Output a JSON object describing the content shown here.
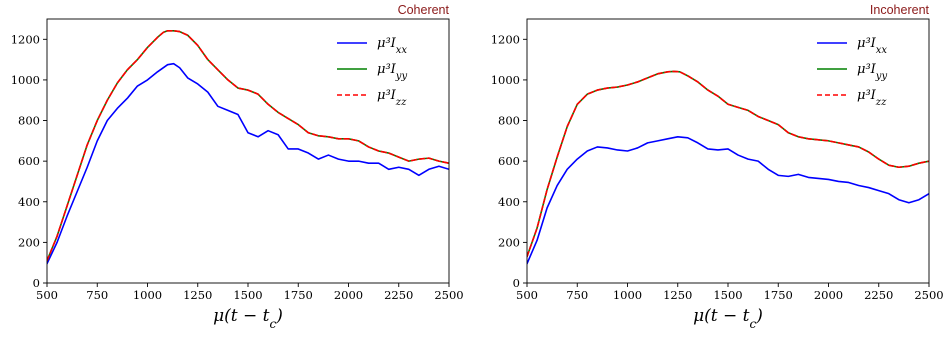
{
  "chart_data": [
    {
      "type": "line",
      "title": "Coherent",
      "xlabel": "μ(t − t_c)",
      "ylabel": "",
      "xlim": [
        500,
        2500
      ],
      "ylim": [
        0,
        1300
      ],
      "xticks": [
        "500",
        "750",
        "1000",
        "1250",
        "1500",
        "1750",
        "2000",
        "2250",
        "2500"
      ],
      "yticks": [
        "0",
        "200",
        "400",
        "600",
        "800",
        "1000",
        "1200"
      ],
      "legend_position": "top-right",
      "series": [
        {
          "name": "μ³I_xx",
          "color": "#0000ff",
          "dash": "solid",
          "x": [
            500,
            550,
            600,
            650,
            700,
            750,
            800,
            850,
            900,
            950,
            1000,
            1050,
            1100,
            1130,
            1160,
            1200,
            1250,
            1300,
            1350,
            1400,
            1450,
            1500,
            1550,
            1600,
            1650,
            1700,
            1750,
            1800,
            1850,
            1900,
            1950,
            2000,
            2050,
            2100,
            2150,
            2200,
            2250,
            2300,
            2350,
            2400,
            2450,
            2500
          ],
          "y": [
            95,
            200,
            330,
            450,
            570,
            700,
            800,
            860,
            910,
            970,
            1000,
            1040,
            1075,
            1080,
            1060,
            1010,
            980,
            940,
            870,
            850,
            830,
            740,
            720,
            750,
            730,
            660,
            660,
            640,
            610,
            630,
            610,
            600,
            600,
            590,
            590,
            560,
            570,
            560,
            530,
            560,
            575,
            560
          ]
        },
        {
          "name": "μ³I_yy",
          "color": "#008000",
          "dash": "solid",
          "x": [
            500,
            550,
            600,
            650,
            700,
            750,
            800,
            850,
            900,
            950,
            1000,
            1050,
            1080,
            1100,
            1130,
            1160,
            1200,
            1250,
            1300,
            1350,
            1400,
            1450,
            1500,
            1550,
            1600,
            1650,
            1700,
            1750,
            1800,
            1850,
            1900,
            1950,
            2000,
            2050,
            2100,
            2150,
            2200,
            2250,
            2300,
            2350,
            2400,
            2450,
            2500
          ],
          "y": [
            110,
            230,
            380,
            530,
            680,
            800,
            900,
            985,
            1050,
            1100,
            1160,
            1210,
            1235,
            1242,
            1242,
            1238,
            1220,
            1170,
            1100,
            1050,
            1000,
            960,
            950,
            930,
            880,
            840,
            810,
            780,
            740,
            725,
            720,
            710,
            710,
            700,
            670,
            650,
            640,
            620,
            600,
            610,
            615,
            600,
            590
          ]
        },
        {
          "name": "μ³I_zz",
          "color": "#ff0000",
          "dash": "dashed",
          "x": [
            500,
            550,
            600,
            650,
            700,
            750,
            800,
            850,
            900,
            950,
            1000,
            1050,
            1080,
            1100,
            1130,
            1160,
            1200,
            1250,
            1300,
            1350,
            1400,
            1450,
            1500,
            1550,
            1600,
            1650,
            1700,
            1750,
            1800,
            1850,
            1900,
            1950,
            2000,
            2050,
            2100,
            2150,
            2200,
            2250,
            2300,
            2350,
            2400,
            2450,
            2500
          ],
          "y": [
            110,
            230,
            380,
            530,
            680,
            800,
            900,
            985,
            1050,
            1100,
            1160,
            1210,
            1235,
            1242,
            1242,
            1238,
            1220,
            1170,
            1100,
            1050,
            1000,
            960,
            950,
            930,
            880,
            840,
            810,
            780,
            740,
            725,
            720,
            710,
            710,
            700,
            670,
            650,
            640,
            620,
            600,
            610,
            615,
            600,
            590
          ]
        }
      ]
    },
    {
      "type": "line",
      "title": "Incoherent",
      "xlabel": "μ(t − t_c)",
      "ylabel": "",
      "xlim": [
        500,
        2500
      ],
      "ylim": [
        0,
        1300
      ],
      "xticks": [
        "500",
        "750",
        "1000",
        "1250",
        "1500",
        "1750",
        "2000",
        "2250",
        "2500"
      ],
      "yticks": [
        "0",
        "200",
        "400",
        "600",
        "800",
        "1000",
        "1200"
      ],
      "legend_position": "top-right",
      "series": [
        {
          "name": "μ³I_xx",
          "color": "#0000ff",
          "dash": "solid",
          "x": [
            500,
            550,
            600,
            650,
            700,
            750,
            800,
            850,
            900,
            950,
            1000,
            1050,
            1100,
            1150,
            1200,
            1250,
            1300,
            1350,
            1400,
            1450,
            1500,
            1550,
            1600,
            1650,
            1700,
            1750,
            1800,
            1850,
            1900,
            1950,
            2000,
            2050,
            2100,
            2150,
            2200,
            2250,
            2300,
            2350,
            2400,
            2450,
            2500
          ],
          "y": [
            95,
            210,
            370,
            480,
            560,
            610,
            650,
            670,
            665,
            655,
            650,
            665,
            690,
            700,
            710,
            720,
            715,
            690,
            660,
            655,
            660,
            630,
            610,
            600,
            560,
            530,
            525,
            535,
            520,
            515,
            510,
            500,
            495,
            480,
            470,
            455,
            440,
            410,
            395,
            410,
            440
          ]
        },
        {
          "name": "μ³I_yy",
          "color": "#008000",
          "dash": "solid",
          "x": [
            500,
            550,
            600,
            650,
            700,
            750,
            800,
            850,
            900,
            950,
            1000,
            1050,
            1100,
            1150,
            1200,
            1230,
            1260,
            1300,
            1350,
            1400,
            1450,
            1500,
            1550,
            1600,
            1650,
            1700,
            1750,
            1800,
            1850,
            1900,
            1950,
            2000,
            2050,
            2100,
            2150,
            2200,
            2250,
            2300,
            2350,
            2400,
            2450,
            2500
          ],
          "y": [
            130,
            270,
            460,
            620,
            770,
            880,
            930,
            950,
            960,
            965,
            975,
            990,
            1010,
            1030,
            1040,
            1042,
            1040,
            1020,
            990,
            950,
            920,
            880,
            865,
            850,
            820,
            800,
            780,
            740,
            720,
            710,
            705,
            700,
            690,
            680,
            670,
            645,
            610,
            580,
            570,
            575,
            590,
            600
          ]
        },
        {
          "name": "μ³I_zz",
          "color": "#ff0000",
          "dash": "dashed",
          "x": [
            500,
            550,
            600,
            650,
            700,
            750,
            800,
            850,
            900,
            950,
            1000,
            1050,
            1100,
            1150,
            1200,
            1230,
            1260,
            1300,
            1350,
            1400,
            1450,
            1500,
            1550,
            1600,
            1650,
            1700,
            1750,
            1800,
            1850,
            1900,
            1950,
            2000,
            2050,
            2100,
            2150,
            2200,
            2250,
            2300,
            2350,
            2400,
            2450,
            2500
          ],
          "y": [
            130,
            270,
            460,
            620,
            770,
            880,
            930,
            950,
            960,
            965,
            975,
            990,
            1010,
            1030,
            1040,
            1042,
            1040,
            1020,
            990,
            950,
            920,
            880,
            865,
            850,
            820,
            800,
            780,
            740,
            720,
            710,
            705,
            700,
            690,
            680,
            670,
            645,
            610,
            580,
            570,
            575,
            590,
            600
          ]
        }
      ]
    }
  ]
}
